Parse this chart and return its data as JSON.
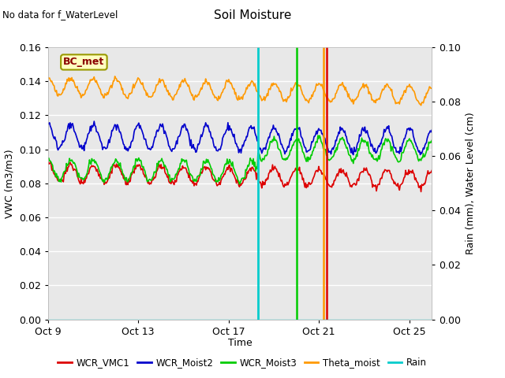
{
  "title": "Soil Moisture",
  "top_left_text": "No data for f_WaterLevel",
  "box_label": "BC_met",
  "xlabel": "Time",
  "ylabel_left": "VWC (m3/m3)",
  "ylabel_right": "Rain (mm), Water Level (cm)",
  "ylim_left": [
    0.0,
    0.16
  ],
  "ylim_right": [
    0.0,
    0.1
  ],
  "x_ticks_labels": [
    "Oct 9",
    "Oct 13",
    "Oct 17",
    "Oct 21",
    "Oct 25"
  ],
  "x_ticks_pos": [
    0,
    4,
    8,
    12,
    16
  ],
  "y_ticks_left": [
    0.0,
    0.02,
    0.04,
    0.06,
    0.08,
    0.1,
    0.12,
    0.14,
    0.16
  ],
  "y_ticks_right": [
    0.0,
    0.02,
    0.04,
    0.06,
    0.08,
    0.1
  ],
  "bg_color": "#e8e8e8",
  "fig_color": "#ffffff",
  "line_colors": {
    "WCR_VMC1": "#dd0000",
    "WCR_Moist2": "#0000cc",
    "WCR_Moist3": "#00cc00",
    "Theta_moist": "#ff9900",
    "Rain": "#00cccc"
  },
  "cyan_vline_x": 9.3,
  "green_vline_x": 11.0,
  "orange_vline_x": 12.2,
  "red_vline_x": 12.35,
  "days_total": 17
}
